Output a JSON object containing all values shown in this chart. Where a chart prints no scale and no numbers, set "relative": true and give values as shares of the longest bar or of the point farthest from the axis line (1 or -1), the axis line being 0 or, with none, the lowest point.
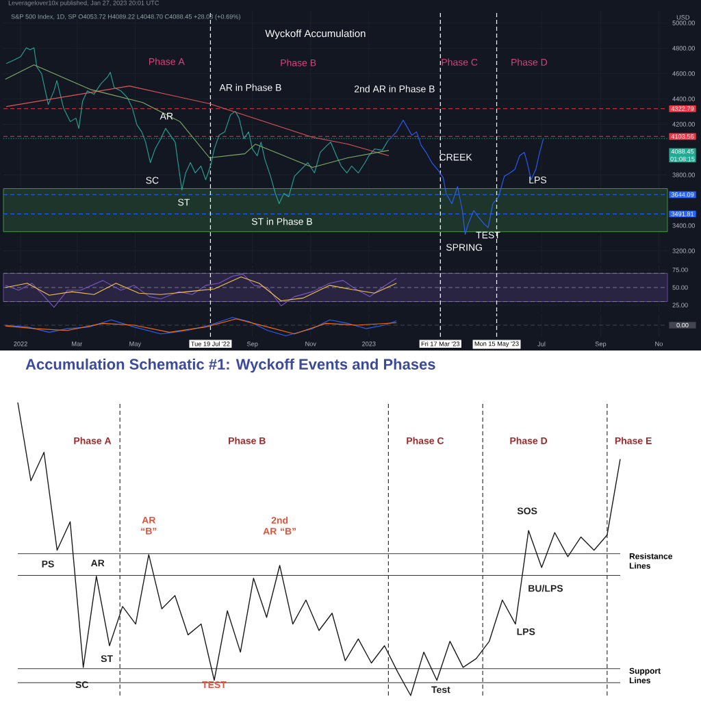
{
  "chart_data": [
    {
      "type": "line",
      "title": "Wyckoff Accumulation",
      "subtitle": "S&P 500 Index, 1D, SP O4053.72 H4089.22 L4048.70 C4088.45 +28.03 (+0.69%)",
      "ylabel": "USD",
      "xlim": [
        "2021-12-14",
        "2023-11-10"
      ],
      "ylim": [
        3100,
        5100
      ],
      "tick_labels": "y",
      "grid": true,
      "marker": "none",
      "xticks": [
        "2022-01-01",
        "2022-03-01",
        "2022-05-01",
        "2022-09-01",
        "2022-11-01",
        "2023-01-01",
        "2023-07-01",
        "2023-09-01",
        "2023-11-01"
      ],
      "yticks": [
        {
          "value": 3200,
          "label": "3200.00"
        },
        {
          "value": 3400,
          "label": "3400.00"
        },
        {
          "value": 3800,
          "label": "3800.00"
        },
        {
          "value": 4200,
          "label": "4200.00"
        },
        {
          "value": 4400,
          "label": "4400.00"
        },
        {
          "value": 4600,
          "label": "4600.00"
        },
        {
          "value": 4800,
          "label": "4800.00"
        },
        {
          "value": 5000,
          "label": "5000.00"
        }
      ],
      "series": [
        {
          "color": "#26a69a",
          "x": [
            "2021-12-17",
            "2021-12-25",
            "2022-01-01",
            "2022-01-07",
            "2022-01-11",
            "2022-01-15",
            "2022-01-18",
            "2022-01-23",
            "2022-01-30",
            "2022-02-05",
            "2022-02-08",
            "2022-02-15",
            "2022-02-22",
            "2022-02-28",
            "2022-03-03",
            "2022-03-07",
            "2022-03-12",
            "2022-03-19",
            "2022-03-26",
            "2022-04-02",
            "2022-04-05",
            "2022-04-09",
            "2022-04-16",
            "2022-04-23",
            "2022-04-28",
            "2022-05-03",
            "2022-05-08",
            "2022-05-12",
            "2022-05-17",
            "2022-05-22",
            "2022-05-28",
            "2022-06-02",
            "2022-06-07",
            "2022-06-12",
            "2022-06-16",
            "2022-06-19",
            "2022-06-23",
            "2022-06-28",
            "2022-07-03",
            "2022-07-09",
            "2022-07-14",
            "2022-07-19",
            "2022-07-23",
            "2022-07-28",
            "2022-08-03",
            "2022-08-09",
            "2022-08-14",
            "2022-08-18",
            "2022-08-23",
            "2022-08-28",
            "2022-09-01",
            "2022-09-06",
            "2022-09-10",
            "2022-09-14",
            "2022-09-20",
            "2022-09-25",
            "2022-09-29",
            "2022-10-04",
            "2022-10-09",
            "2022-10-15",
            "2022-10-22",
            "2022-10-29",
            "2022-11-05",
            "2022-11-11",
            "2022-11-18",
            "2022-11-22",
            "2022-11-28",
            "2022-12-03",
            "2022-12-09",
            "2022-12-14",
            "2022-12-21",
            "2022-12-28",
            "2023-01-01",
            "2023-01-07",
            "2023-01-15",
            "2023-01-21"
          ],
          "values": [
            4680,
            4707,
            4734,
            4804,
            4788,
            4804,
            4653,
            4599,
            4356,
            4464,
            4545,
            4329,
            4221,
            4248,
            4167,
            4383,
            4464,
            4437,
            4518,
            4572,
            4610,
            4491,
            4464,
            4410,
            4329,
            4194,
            4140,
            4059,
            3897,
            4005,
            4086,
            4167,
            4113,
            4059,
            3843,
            3681,
            3816,
            3897,
            3816,
            3870,
            3762,
            3870,
            4005,
            4113,
            4140,
            4275,
            4302,
            4248,
            4086,
            4140,
            4005,
            3951,
            4059,
            3924,
            3789,
            3654,
            3573,
            3654,
            3627,
            3789,
            3843,
            3897,
            3816,
            3978,
            4032,
            4059,
            3951,
            3870,
            3816,
            3870,
            3816,
            3897,
            3951,
            4005,
            3994,
            4070
          ]
        },
        {
          "color": "#2962ff",
          "x": [
            "2023-01-21",
            "2023-01-30",
            "2023-02-06",
            "2023-02-11",
            "2023-02-15",
            "2023-02-20",
            "2023-02-25",
            "2023-03-02",
            "2023-03-08",
            "2023-03-14",
            "2023-03-20",
            "2023-03-23",
            "2023-03-29",
            "2023-04-04",
            "2023-04-09",
            "2023-04-12",
            "2023-04-15",
            "2023-04-21",
            "2023-04-26",
            "2023-05-02",
            "2023-05-06",
            "2023-05-11",
            "2023-05-17",
            "2023-05-23",
            "2023-05-29",
            "2023-06-03",
            "2023-06-08",
            "2023-06-13",
            "2023-06-16",
            "2023-06-20",
            "2023-06-25",
            "2023-06-29",
            "2023-07-03"
          ],
          "values": [
            4070,
            4140,
            4232,
            4167,
            4113,
            4140,
            4032,
            3978,
            3897,
            3843,
            3778,
            3654,
            3573,
            3708,
            3519,
            3330,
            3411,
            3519,
            3465,
            3411,
            3384,
            3573,
            3627,
            3789,
            3816,
            3843,
            3951,
            3978,
            3897,
            3762,
            3843,
            3978,
            4086
          ]
        },
        {
          "color": "#e0565b",
          "x": [
            "2021-12-17",
            "2022-04-25",
            "2022-07-18",
            "2022-11-03",
            "2022-12-10",
            "2023-01-22"
          ],
          "values": [
            4340,
            4502,
            4362,
            4097,
            4043,
            3951
          ]
        },
        {
          "color": "#7fb069",
          "x": [
            "2021-12-16",
            "2022-01-15",
            "2022-03-15",
            "2022-05-09",
            "2022-06-17",
            "2022-07-18",
            "2022-08-24",
            "2022-09-04",
            "2022-11-03",
            "2022-12-10",
            "2023-01-22"
          ],
          "values": [
            4556,
            4669,
            4475,
            4372,
            4221,
            3935,
            3967,
            4043,
            3859,
            3935,
            3994
          ]
        }
      ],
      "ref_lines": [
        {
          "axis": "y",
          "value": 4322.79,
          "label": "4322.79",
          "color": "#f23645",
          "line_style": "dashed"
        },
        {
          "axis": "y",
          "value": 4103.56,
          "label": "4103.56",
          "color": "#f23645",
          "line_style": "dashed"
        },
        {
          "axis": "y",
          "value": 4088.45,
          "label": "4088.45 01:08:15",
          "color": "#22ab94",
          "line_style": "dotted"
        },
        {
          "axis": "y",
          "value": 3644.09,
          "label": "3644.09",
          "color": "#2962ff",
          "line_style": "dashed"
        },
        {
          "axis": "y",
          "value": 3491.81,
          "label": "3491.81",
          "color": "#2962ff",
          "line_style": "dashed"
        },
        {
          "axis": "x",
          "value": "2022-07-19",
          "color": "#ffffff",
          "line_style": "dashed"
        },
        {
          "axis": "x",
          "value": "2023-03-17",
          "color": "#ffffff",
          "line_style": "dashed"
        },
        {
          "axis": "x",
          "value": "2023-05-15",
          "color": "#ffffff",
          "line_style": "dashed"
        }
      ],
      "bands": [
        {
          "axis": "y",
          "from": 3352,
          "to": 3692,
          "color": "#4caf50"
        }
      ],
      "annotations": [
        "Leveragelover10x published, Jan 27, 2023 20:01 UTC",
        "Phase A",
        "Phase B",
        "Phase C",
        "Phase D",
        "AR",
        "AR in Phase B",
        "2nd AR in Phase B",
        "SC",
        "ST",
        "ST in Phase B",
        "CREEK",
        "SPRING",
        "TEST",
        "LPS"
      ]
    },
    {
      "type": "line",
      "xlim": [
        "2021-12-14",
        "2023-11-10"
      ],
      "ylim": [
        16,
        81
      ],
      "tick_labels": "y",
      "grid": true,
      "xticks": [
        "2022-01-01",
        "2022-03-01",
        "2022-05-01",
        "2022-09-01",
        "2022-11-01",
        "2023-01-01",
        "2023-07-01",
        "2023-09-01",
        "2023-11-01"
      ],
      "yticks": [
        {
          "value": 25,
          "label": "25.00"
        },
        {
          "value": 50,
          "label": "50.00"
        },
        {
          "value": 75,
          "label": "75.00"
        }
      ],
      "series": [
        {
          "color": "#7e57c2",
          "x": [
            "2021-12-16",
            "2021-12-30",
            "2022-01-13",
            "2022-01-24",
            "2022-02-05",
            "2022-02-19",
            "2022-03-05",
            "2022-03-28",
            "2022-04-16",
            "2022-04-30",
            "2022-05-16",
            "2022-05-28",
            "2022-06-16",
            "2022-06-30",
            "2022-07-14",
            "2022-07-28",
            "2022-08-11",
            "2022-08-22",
            "2022-09-03",
            "2022-09-17",
            "2022-10-01",
            "2022-10-15",
            "2022-11-03",
            "2022-11-21",
            "2022-12-05",
            "2022-12-19",
            "2023-01-02",
            "2023-01-15",
            "2023-01-30"
          ],
          "values": [
            53,
            46,
            56,
            40,
            22,
            46,
            46,
            60,
            46,
            53,
            37,
            34,
            44,
            40,
            53,
            56,
            66,
            69,
            53,
            50,
            24,
            37,
            44,
            56,
            60,
            47,
            37,
            50,
            63
          ]
        },
        {
          "color": "#f7c548",
          "x": [
            "2021-12-16",
            "2022-01-08",
            "2022-01-31",
            "2022-02-24",
            "2022-03-19",
            "2022-04-11",
            "2022-05-05",
            "2022-05-28",
            "2022-06-25",
            "2022-07-23",
            "2022-08-20",
            "2022-09-08",
            "2022-10-01",
            "2022-10-24",
            "2022-11-21",
            "2022-12-15",
            "2023-01-07",
            "2023-01-30"
          ],
          "values": [
            50,
            56,
            39,
            44,
            40,
            56,
            42,
            40,
            44,
            48,
            65,
            56,
            31,
            35,
            53,
            47,
            42,
            56
          ]
        }
      ],
      "bands": [
        {
          "axis": "y",
          "from": 30,
          "to": 70,
          "color": "#7e57c2"
        }
      ],
      "ref_lines": [
        {
          "axis": "y",
          "value": 70,
          "color": "#787b86",
          "line_style": "dashed"
        },
        {
          "axis": "y",
          "value": 50,
          "color": "#787b86",
          "line_style": "dashed"
        },
        {
          "axis": "y",
          "value": 30,
          "color": "#787b86",
          "line_style": "dashed"
        },
        {
          "axis": "x",
          "value": "2022-07-19",
          "color": "#ffffff",
          "line_style": "dashed"
        },
        {
          "axis": "x",
          "value": "2023-03-17",
          "color": "#ffffff",
          "line_style": "dashed"
        },
        {
          "axis": "x",
          "value": "2023-05-15",
          "color": "#ffffff",
          "line_style": "dashed"
        }
      ]
    },
    {
      "type": "line",
      "relative": true,
      "xlim": [
        "2021-12-14",
        "2023-11-10"
      ],
      "grid": "x",
      "xticks": [
        {
          "value": "2022-01-01",
          "label": "2022"
        },
        {
          "value": "2022-03-01",
          "label": "Mar"
        },
        {
          "value": "2022-05-01",
          "label": "May"
        },
        {
          "value": "2022-09-01",
          "label": "Sep"
        },
        {
          "value": "2022-11-01",
          "label": "Nov"
        },
        {
          "value": "2023-01-01",
          "label": "2023"
        },
        {
          "value": "2023-07-01",
          "label": "Jul"
        },
        {
          "value": "2023-09-01",
          "label": "Sep"
        },
        {
          "value": "2023-11-01",
          "label": "No"
        }
      ],
      "series": [
        {
          "color": "#2962ff",
          "x": [
            "2021-12-16",
            "2022-01-08",
            "2022-01-31",
            "2022-02-19",
            "2022-03-14",
            "2022-04-06",
            "2022-04-30",
            "2022-05-28",
            "2022-06-25",
            "2022-07-18",
            "2022-08-11",
            "2022-08-29",
            "2022-09-17",
            "2022-10-06",
            "2022-11-03",
            "2022-11-21",
            "2022-12-10",
            "2022-12-29",
            "2023-01-17",
            "2023-01-30"
          ],
          "values": [
            0,
            -0.17,
            -0.67,
            -0.33,
            -0.17,
            0.5,
            -0.17,
            -0.83,
            -0.5,
            0,
            0.73,
            0.33,
            -0.5,
            -1,
            -0.33,
            0.5,
            0.17,
            -0.33,
            0,
            0.4
          ]
        },
        {
          "color": "#ff6d00",
          "x": [
            "2021-12-16",
            "2022-01-17",
            "2022-02-19",
            "2022-03-28",
            "2022-04-30",
            "2022-06-06",
            "2022-07-14",
            "2022-08-15",
            "2022-09-17",
            "2022-10-15",
            "2022-11-17",
            "2022-12-19",
            "2023-01-30"
          ],
          "values": [
            -0.07,
            -0.33,
            -0.5,
            0.17,
            0,
            -0.67,
            -0.17,
            0.6,
            -0.17,
            -0.83,
            0.17,
            0,
            0.23
          ]
        }
      ],
      "ref_lines": [
        {
          "axis": "y",
          "value": 0,
          "label": "0.00",
          "color": "#434651",
          "line_style": "dashed"
        },
        {
          "axis": "x",
          "value": "2022-07-19",
          "label": "Tue 19 Jul '22",
          "color": "#ffffff",
          "line_style": "dashed"
        },
        {
          "axis": "x",
          "value": "2023-03-17",
          "label": "Fri 17 Mar '23",
          "color": "#ffffff",
          "line_style": "dashed"
        },
        {
          "axis": "x",
          "value": "2023-05-15",
          "label": "Mon 15 May '23",
          "color": "#ffffff",
          "line_style": "dashed"
        }
      ]
    },
    {
      "type": "line",
      "relative": true,
      "title": "Accumulation Schematic #1: Wyckoff Events and Phases",
      "categories": [
        null,
        null,
        null,
        null,
        null,
        null,
        null,
        null,
        null,
        null,
        null,
        null,
        null,
        null,
        null,
        null,
        null,
        null,
        null,
        null,
        null,
        null,
        null,
        null,
        null,
        null,
        null,
        null,
        null,
        null,
        null,
        null,
        null,
        null,
        null,
        null,
        null,
        null,
        null,
        null,
        null,
        null,
        null,
        null,
        null,
        null,
        null
      ],
      "series": [
        {
          "color": "#1a1a1a",
          "values": [
            1.0,
            0.733,
            0.83,
            0.496,
            0.593,
            0.096,
            0.407,
            0.17,
            0.304,
            0.244,
            0.481,
            0.296,
            0.341,
            0.207,
            0.244,
            0.052,
            0.289,
            0.148,
            0.4,
            0.267,
            0.444,
            0.244,
            0.326,
            0.222,
            0.281,
            0.119,
            0.193,
            0.111,
            0.17,
            0.081,
            0,
            0.148,
            0.052,
            0.185,
            0.096,
            0.126,
            0.185,
            0.326,
            0.244,
            0.563,
            0.437,
            0.556,
            0.474,
            0.541,
            0.496,
            0.548,
            0.807
          ]
        }
      ],
      "ref_lines": [
        {
          "axis": "y",
          "value": 0.484,
          "label": "Resistance Lines",
          "color": "#333333"
        },
        {
          "axis": "y",
          "value": 0.41,
          "color": "#333333"
        },
        {
          "axis": "y",
          "value": 0.092,
          "label": "Support Lines",
          "color": "#333333"
        },
        {
          "axis": "y",
          "value": 0.044,
          "color": "#333333"
        }
      ],
      "annotations": [
        "Phase A",
        "Phase B",
        "Phase C",
        "Phase D",
        "Phase E",
        "PS",
        "AR",
        "SC",
        "ST",
        "AR “B”",
        "2nd AR “B”",
        "TEST",
        "Test",
        "SOS",
        "BU/LPS",
        "LPS"
      ]
    }
  ]
}
